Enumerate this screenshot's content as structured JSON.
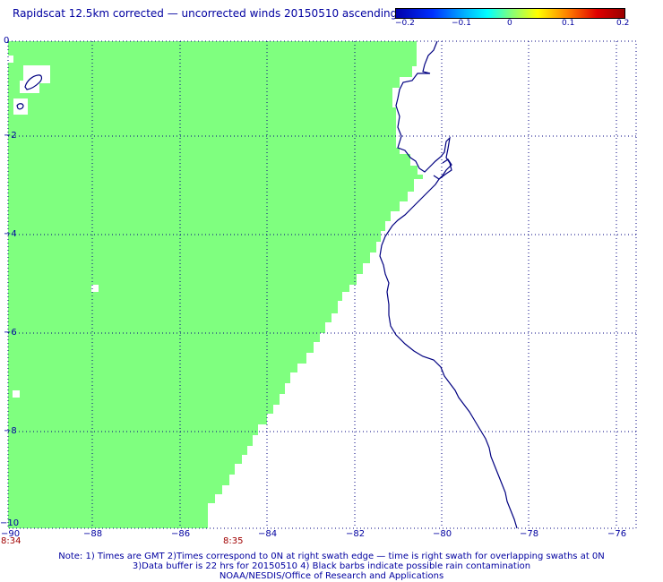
{
  "title": "Rapidscat 12.5km corrected — uncorrected winds 20150510 ascending",
  "colorbar": {
    "ticks": [
      "−0.2",
      "−0.1",
      "0",
      "0.1",
      "0.2"
    ]
  },
  "map": {
    "lon_range": [
      -90,
      -76
    ],
    "lat_range": [
      -10,
      0
    ],
    "fill_color": "#7fff7f",
    "coast_color": "#000080",
    "grid_color": "#000080",
    "y_ticks": [
      "0",
      "−2",
      "−4",
      "−6",
      "−8",
      "−10"
    ],
    "x_ticks": [
      "−88",
      "−86",
      "−84",
      "−82",
      "−80",
      "−78",
      "−76"
    ],
    "x_tick_first": "−90",
    "time_labels": [
      "8:34",
      "8:35"
    ]
  },
  "notes": [
    "Note: 1) Times are GMT 2)Times correspond to 0N at right swath edge — time is right swath for overlapping swaths at 0N",
    "3)Data buffer is 22 hrs for 20150510 4) Black barbs indicate possible rain contamination",
    "NOAA/NESDIS/Office of Research and Applications"
  ]
}
